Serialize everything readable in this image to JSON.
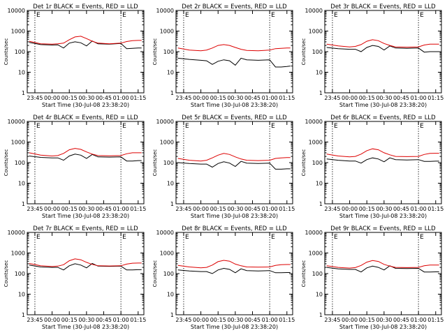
{
  "figure": {
    "common": {
      "ylabel": "Counts/sec",
      "xlabel": "Start Time (30-Jul-08 23:38:20)",
      "yticks": [
        1,
        10,
        100,
        1000,
        10000
      ],
      "ytick_labels": [
        "1",
        "10",
        "100",
        "1000",
        "10000"
      ],
      "xticks": [
        "23:45",
        "00:00",
        "00:15",
        "00:30",
        "00:45",
        "01:00",
        "01:15"
      ],
      "xtick_labels": [
        "23:45",
        "00:00",
        "00:15",
        "00:30",
        "00:45",
        "01:00",
        "01:15"
      ],
      "marker_label": "E",
      "series_colors": {
        "events": "#000000",
        "lld": "#dd0000"
      }
    }
  },
  "chart_data": [
    {
      "type": "line",
      "title": "Det 1r BLACK = Events, RED = LLD",
      "xlabel": "Start Time (30-Jul-08 23:38:20)",
      "ylabel": "Counts/sec",
      "yscale": "log",
      "ylim": [
        1,
        10000
      ],
      "xlim": [
        "23:38:20",
        "01:20:00"
      ],
      "event_markers": [
        "23:45",
        "01:00"
      ],
      "x": [
        "23:40",
        "23:50",
        "00:00",
        "00:05",
        "00:10",
        "00:15",
        "00:20",
        "00:25",
        "00:30",
        "00:35",
        "00:40",
        "00:50",
        "01:00",
        "01:05",
        "01:10",
        "01:15",
        "01:18"
      ],
      "series": [
        {
          "values": [
            280,
            220,
            210,
            215,
            150,
            260,
            300,
            270,
            190,
            330,
            240,
            230,
            250,
            140,
            145,
            150,
            150
          ]
        },
        {
          "values": [
            320,
            240,
            230,
            240,
            260,
            380,
            520,
            560,
            430,
            320,
            260,
            240,
            260,
            310,
            340,
            350,
            350
          ]
        }
      ]
    },
    {
      "type": "line",
      "title": "Det 2r BLACK = Events, RED = LLD",
      "xlabel": "Start Time (30-Jul-08 23:38:20)",
      "ylabel": "Counts/sec",
      "yscale": "log",
      "ylim": [
        1,
        10000
      ],
      "xlim": [
        "23:38:20",
        "01:20:00"
      ],
      "event_markers": [
        "23:45",
        "01:00"
      ],
      "x": [
        "23:40",
        "23:50",
        "00:00",
        "00:05",
        "00:10",
        "00:15",
        "00:20",
        "00:25",
        "00:30",
        "00:35",
        "00:40",
        "00:50",
        "01:00",
        "01:05",
        "01:10",
        "01:15",
        "01:18"
      ],
      "series": [
        {
          "values": [
            48,
            42,
            38,
            36,
            24,
            34,
            40,
            36,
            22,
            48,
            40,
            38,
            40,
            18,
            18,
            19,
            20
          ]
        },
        {
          "values": [
            150,
            120,
            110,
            120,
            150,
            200,
            220,
            200,
            160,
            130,
            115,
            110,
            120,
            140,
            145,
            150,
            150
          ]
        }
      ]
    },
    {
      "type": "line",
      "title": "Det 3r BLACK = Events, RED = LLD",
      "xlabel": "Start Time (30-Jul-08 23:38:20)",
      "ylabel": "Counts/sec",
      "yscale": "log",
      "ylim": [
        1,
        10000
      ],
      "xlim": [
        "23:38:20",
        "01:20:00"
      ],
      "event_markers": [
        "23:45",
        "01:00"
      ],
      "x": [
        "23:40",
        "23:50",
        "00:00",
        "00:05",
        "00:10",
        "00:15",
        "00:20",
        "00:25",
        "00:30",
        "00:35",
        "00:40",
        "00:50",
        "01:00",
        "01:05",
        "01:10",
        "01:15",
        "01:18"
      ],
      "series": [
        {
          "values": [
            160,
            140,
            130,
            130,
            100,
            160,
            200,
            180,
            120,
            190,
            150,
            145,
            150,
            95,
            100,
            100,
            100
          ]
        },
        {
          "values": [
            230,
            190,
            170,
            180,
            220,
            320,
            380,
            340,
            250,
            200,
            170,
            165,
            170,
            210,
            230,
            230,
            230
          ]
        }
      ]
    },
    {
      "type": "line",
      "title": "Det 4r BLACK = Events, RED = LLD",
      "xlabel": "Start Time (30-Jul-08 23:38:20)",
      "ylabel": "Counts/sec",
      "yscale": "log",
      "ylim": [
        1,
        10000
      ],
      "xlim": [
        "23:38:20",
        "01:20:00"
      ],
      "event_markers": [
        "23:45",
        "01:00"
      ],
      "x": [
        "23:40",
        "23:50",
        "00:00",
        "00:05",
        "00:10",
        "00:15",
        "00:20",
        "00:25",
        "00:30",
        "00:35",
        "00:40",
        "00:50",
        "01:00",
        "01:05",
        "01:10",
        "01:15",
        "01:18"
      ],
      "series": [
        {
          "values": [
            210,
            180,
            170,
            170,
            130,
            210,
            260,
            230,
            160,
            250,
            190,
            185,
            190,
            120,
            120,
            125,
            125
          ]
        },
        {
          "values": [
            300,
            230,
            210,
            220,
            280,
            420,
            490,
            440,
            330,
            260,
            220,
            215,
            220,
            270,
            300,
            300,
            300
          ]
        }
      ]
    },
    {
      "type": "line",
      "title": "Det 5r BLACK = Events, RED = LLD",
      "xlabel": "Start Time (30-Jul-08 23:38:20)",
      "ylabel": "Counts/sec",
      "yscale": "log",
      "ylim": [
        1,
        10000
      ],
      "xlim": [
        "23:38:20",
        "01:20:00"
      ],
      "event_markers": [
        "23:45",
        "01:00"
      ],
      "x": [
        "23:40",
        "23:50",
        "00:00",
        "00:05",
        "00:10",
        "00:15",
        "00:20",
        "00:25",
        "00:30",
        "00:35",
        "00:40",
        "00:50",
        "01:00",
        "01:05",
        "01:10",
        "01:15",
        "01:18"
      ],
      "series": [
        {
          "values": [
            100,
            90,
            85,
            85,
            60,
            90,
            110,
            95,
            65,
            115,
            95,
            90,
            95,
            48,
            48,
            50,
            50
          ]
        },
        {
          "values": [
            160,
            130,
            120,
            130,
            170,
            230,
            280,
            250,
            190,
            150,
            130,
            125,
            130,
            160,
            170,
            175,
            175
          ]
        }
      ]
    },
    {
      "type": "line",
      "title": "Det 6r BLACK = Events, RED = LLD",
      "xlabel": "Start Time (30-Jul-08 23:38:20)",
      "ylabel": "Counts/sec",
      "yscale": "log",
      "ylim": [
        1,
        10000
      ],
      "xlim": [
        "23:38:20",
        "01:20:00"
      ],
      "event_markers": [
        "23:45",
        "01:00"
      ],
      "x": [
        "23:40",
        "23:50",
        "00:00",
        "00:05",
        "00:10",
        "00:15",
        "00:20",
        "00:25",
        "00:30",
        "00:35",
        "00:40",
        "00:50",
        "01:00",
        "01:05",
        "01:10",
        "01:15",
        "01:18"
      ],
      "series": [
        {
          "values": [
            150,
            130,
            120,
            120,
            95,
            140,
            170,
            150,
            110,
            170,
            140,
            135,
            140,
            115,
            115,
            118,
            118
          ]
        },
        {
          "values": [
            260,
            210,
            190,
            200,
            260,
            380,
            470,
            420,
            300,
            240,
            200,
            195,
            200,
            250,
            280,
            285,
            285
          ]
        }
      ]
    },
    {
      "type": "line",
      "title": "Det 7r BLACK = Events, RED = LLD",
      "xlabel": "Start Time (30-Jul-08 23:38:20)",
      "ylabel": "Counts/sec",
      "yscale": "log",
      "ylim": [
        1,
        10000
      ],
      "xlim": [
        "23:38:20",
        "01:20:00"
      ],
      "event_markers": [
        "23:45",
        "01:00"
      ],
      "x": [
        "23:40",
        "23:50",
        "00:00",
        "00:05",
        "00:10",
        "00:15",
        "00:20",
        "00:25",
        "00:30",
        "00:35",
        "00:40",
        "00:50",
        "01:00",
        "01:05",
        "01:10",
        "01:15",
        "01:18"
      ],
      "series": [
        {
          "values": [
            260,
            210,
            200,
            200,
            150,
            240,
            300,
            260,
            190,
            310,
            230,
            225,
            230,
            150,
            150,
            155,
            155
          ]
        },
        {
          "values": [
            310,
            240,
            220,
            230,
            270,
            420,
            520,
            470,
            350,
            280,
            240,
            235,
            240,
            290,
            320,
            325,
            325
          ]
        }
      ]
    },
    {
      "type": "line",
      "title": "Det 8r BLACK = Events, RED = LLD",
      "xlabel": "Start Time (30-Jul-08 23:38:20)",
      "ylabel": "Counts/sec",
      "yscale": "log",
      "ylim": [
        1,
        10000
      ],
      "xlim": [
        "23:38:20",
        "01:20:00"
      ],
      "event_markers": [
        "23:45",
        "01:00"
      ],
      "x": [
        "23:40",
        "23:50",
        "00:00",
        "00:05",
        "00:10",
        "00:15",
        "00:20",
        "00:25",
        "00:30",
        "00:35",
        "00:40",
        "00:50",
        "01:00",
        "01:05",
        "01:10",
        "01:15",
        "01:18"
      ],
      "series": [
        {
          "values": [
            150,
            135,
            125,
            125,
            100,
            150,
            180,
            160,
            110,
            170,
            140,
            135,
            140,
            110,
            110,
            112,
            112
          ]
        },
        {
          "values": [
            250,
            210,
            190,
            200,
            260,
            380,
            440,
            400,
            290,
            240,
            210,
            205,
            210,
            250,
            270,
            275,
            275
          ]
        }
      ]
    },
    {
      "type": "line",
      "title": "Det 9r BLACK = Events, RED = LLD",
      "xlabel": "Start Time (30-Jul-08 23:38:20)",
      "ylabel": "Counts/sec",
      "yscale": "log",
      "ylim": [
        1,
        10000
      ],
      "xlim": [
        "23:38:20",
        "01:20:00"
      ],
      "event_markers": [
        "23:45",
        "01:00"
      ],
      "x": [
        "23:40",
        "23:50",
        "00:00",
        "00:05",
        "00:10",
        "00:15",
        "00:20",
        "00:25",
        "00:30",
        "00:35",
        "00:40",
        "00:50",
        "01:00",
        "01:05",
        "01:10",
        "01:15",
        "01:18"
      ],
      "series": [
        {
          "values": [
            200,
            170,
            160,
            160,
            120,
            190,
            230,
            200,
            150,
            240,
            180,
            175,
            180,
            120,
            120,
            122,
            122
          ]
        },
        {
          "values": [
            240,
            200,
            185,
            195,
            250,
            360,
            430,
            390,
            280,
            230,
            200,
            195,
            200,
            240,
            260,
            262,
            262
          ]
        }
      ]
    }
  ]
}
